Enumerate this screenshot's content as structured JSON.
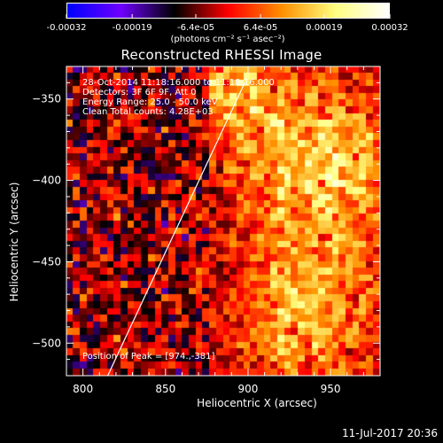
{
  "colorbar": {
    "tick_labels": [
      "-0.00032",
      "-0.00019",
      "-6.4e-05",
      "6.4e-05",
      "0.00019",
      "0.00032"
    ],
    "tick_values": [
      -0.00032,
      -0.00019,
      -6.4e-05,
      6.4e-05,
      0.00019,
      0.00032
    ],
    "range": [
      -0.00032,
      0.00032
    ],
    "unit": "(photons cm⁻² s⁻¹ asec⁻²)",
    "colormap": [
      "#0000ff",
      "#7000ff",
      "#000000",
      "#ff0000",
      "#ff9000",
      "#ffff80",
      "#ffffff"
    ]
  },
  "annotations": {
    "line1": "28-Oct-2014 11:18:16.000 to 11:18:16.000",
    "line2": "Detectors: 3F 6F 9F, Att 0",
    "line3": "Energy Range: 25.0 - 50.0 keV",
    "line4": "Clean     Total counts: 4.28E+03",
    "peak": "Position of Peak = [974.,-381]"
  },
  "footer_stamp": "11-Jul-2017 20:36",
  "chart_data": {
    "type": "heatmap",
    "title": "Reconstructed RHESSI Image",
    "xlabel": "Heliocentric X (arcsec)",
    "ylabel": "Heliocentric Y (arcsec)",
    "xlim": [
      790,
      980
    ],
    "ylim": [
      -520,
      -330
    ],
    "x_ticks": [
      800,
      850,
      900,
      950
    ],
    "x_tick_labels": [
      "800",
      "850",
      "900",
      "950"
    ],
    "y_ticks": [
      -350,
      -400,
      -450,
      -500
    ],
    "y_tick_labels": [
      "−350",
      "−400",
      "−450",
      "−500"
    ],
    "limb_line": [
      [
        815,
        -520
      ],
      [
        898,
        -340
      ]
    ],
    "peak_position": [
      974,
      -381
    ],
    "grid": false
  }
}
